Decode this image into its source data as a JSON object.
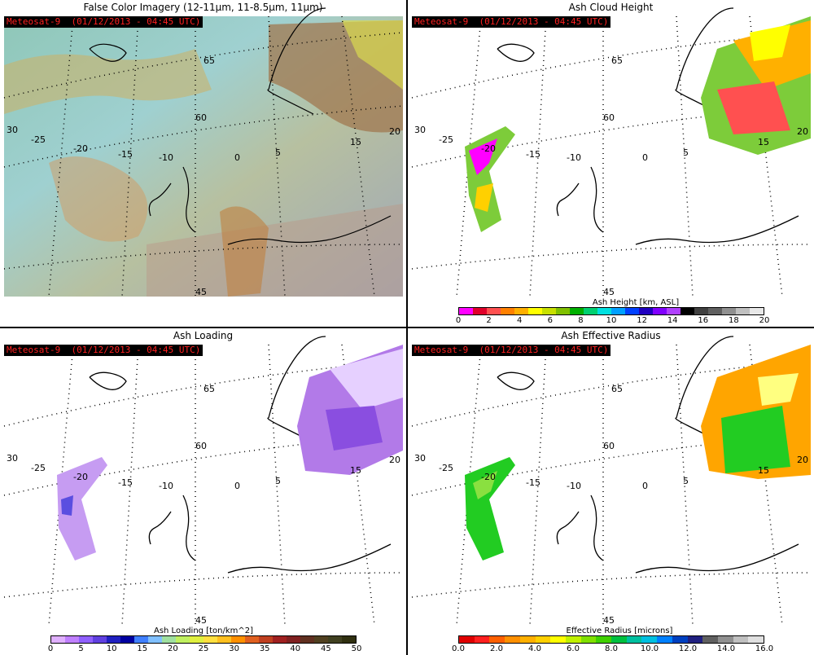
{
  "panels": [
    {
      "title": "False Color Imagery (12-11μm, 11-8.5μm, 11μm)",
      "badge": "Meteosat-9  (01/12/2013 - 04:45 UTC)"
    },
    {
      "title": "Ash Cloud Height",
      "badge": "Meteosat-9  (01/12/2013 - 04:45 UTC)",
      "colorbar": {
        "label": "Ash Height [km, ASL]",
        "ticks": [
          "0",
          "2",
          "4",
          "6",
          "8",
          "10",
          "12",
          "14",
          "16",
          "18",
          "20"
        ],
        "colors": [
          "#ff00ff",
          "#e0002a",
          "#ff5050",
          "#ff8000",
          "#ffb000",
          "#ffff00",
          "#c8e000",
          "#80c000",
          "#00b000",
          "#00d070",
          "#00e0e0",
          "#00a0ff",
          "#0040ff",
          "#2000c0",
          "#8000ff",
          "#b040ff",
          "#000000",
          "#404040",
          "#606060",
          "#909090",
          "#c0c0c0",
          "#e8e8e8"
        ]
      }
    },
    {
      "title": "Ash Loading",
      "badge": "Meteosat-9  (01/12/2013 - 04:45 UTC)",
      "colorbar": {
        "label": "Ash Loading [ton/km^2]",
        "ticks": [
          "0",
          "5",
          "10",
          "15",
          "20",
          "25",
          "30",
          "35",
          "40",
          "45",
          "50"
        ],
        "colors": [
          "#e0b0ff",
          "#c080ff",
          "#9060ff",
          "#6040e0",
          "#2020c0",
          "#0000a0",
          "#4080ff",
          "#80c0ff",
          "#a0e0a0",
          "#c0f060",
          "#e0f040",
          "#ffe040",
          "#ffc020",
          "#ff9000",
          "#e06020",
          "#c04020",
          "#a02020",
          "#802020",
          "#603020",
          "#504020",
          "#404020",
          "#303010"
        ]
      }
    },
    {
      "title": "Ash Effective Radius",
      "badge": "Meteosat-9  (01/12/2013 - 04:45 UTC)",
      "colorbar": {
        "label": "Effective Radius [microns]",
        "ticks": [
          "0.0",
          "2.0",
          "4.0",
          "6.0",
          "8.0",
          "10.0",
          "12.0",
          "14.0",
          "16.0"
        ],
        "colors": [
          "#e00000",
          "#ff2020",
          "#ff6000",
          "#ff9000",
          "#ffb000",
          "#ffd000",
          "#ffff00",
          "#c0f000",
          "#80e000",
          "#40d000",
          "#00c040",
          "#00c0a0",
          "#00c0e0",
          "#0080ff",
          "#0040c0",
          "#202080",
          "#606060",
          "#909090",
          "#c0c0c0",
          "#e0e0e0"
        ]
      }
    }
  ],
  "map_labels": {
    "longitudes": [
      "-25",
      "-20",
      "-15",
      "-10",
      "0",
      "5",
      "15",
      "20",
      "30"
    ],
    "latitudes": [
      "65",
      "60",
      "45"
    ]
  }
}
